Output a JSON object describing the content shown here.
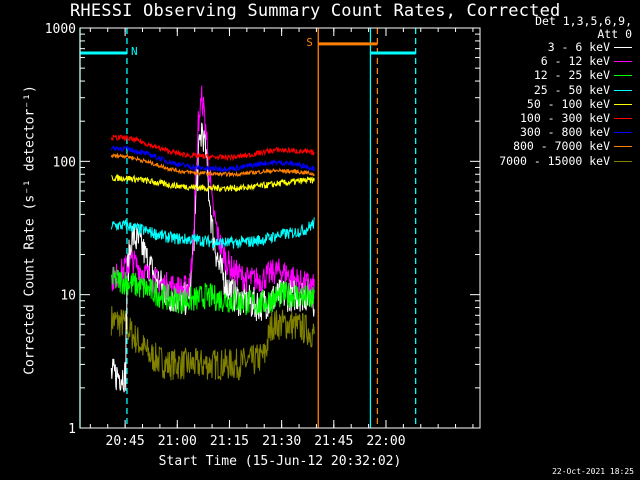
{
  "chart_data": {
    "type": "line",
    "title": "RHESSI Observing Summary Count Rates, Corrected",
    "detector_line1": "Det 1,3,5,6,9,",
    "detector_line2": "Att 0",
    "xlabel": "Start Time (15-Jun-12 20:32:02)",
    "ylabel": "Corrected Count Rate (s⁻¹ detector⁻¹)",
    "x_unit": "minutes after 20:32:02 UT",
    "xlim": [
      0,
      115
    ],
    "ylim": [
      1,
      1000
    ],
    "y_scale": "log",
    "x_ticks": [
      {
        "value": 12.97,
        "label": "20:45"
      },
      {
        "value": 27.97,
        "label": "21:00"
      },
      {
        "value": 42.97,
        "label": "21:15"
      },
      {
        "value": 57.97,
        "label": "21:30"
      },
      {
        "value": 72.97,
        "label": "21:45"
      },
      {
        "value": 87.97,
        "label": "22:00"
      }
    ],
    "y_ticks": [
      {
        "value": 1,
        "label": "1"
      },
      {
        "value": 10,
        "label": "10"
      },
      {
        "value": 100,
        "label": "100"
      },
      {
        "value": 1000,
        "label": "1000"
      }
    ],
    "timestamp": "22-Oct-2021 18:25",
    "flags": [
      {
        "label": "N",
        "color": "#00ffff",
        "x_start": 0,
        "x_end": 13.5,
        "level": 650
      },
      {
        "label": "S",
        "color": "#ff8000",
        "x_start": 68.5,
        "x_end": 85.5,
        "level": 760
      },
      {
        "label": "",
        "color": "#00ffff",
        "x_start": 83.5,
        "x_end": 96.5,
        "level": 650
      }
    ],
    "vlines": [
      {
        "x": 0,
        "color": "#00ffff",
        "style": "solid"
      },
      {
        "x": 13.5,
        "color": "#00ffff",
        "style": "dashed"
      },
      {
        "x": 68.5,
        "color": "#ff8000",
        "style": "solid"
      },
      {
        "x": 83.5,
        "color": "#00ffff",
        "style": "solid"
      },
      {
        "x": 85.5,
        "color": "#ff8000",
        "style": "dashed"
      },
      {
        "x": 96.5,
        "color": "#00ffff",
        "style": "dashed"
      }
    ],
    "series": [
      {
        "name": "3 - 6 keV",
        "color": "#ffffff",
        "x": [
          9,
          13,
          13.5,
          15,
          18,
          20,
          23,
          25,
          27,
          29,
          31,
          32,
          33,
          34,
          35,
          36,
          37,
          38,
          40,
          42,
          44,
          46,
          48,
          50,
          52,
          54,
          56,
          58,
          60,
          62,
          64,
          66,
          67.5
        ],
        "y": [
          2.5,
          2.5,
          15,
          28,
          22,
          16,
          12,
          10,
          9.5,
          9,
          9.5,
          14,
          40,
          110,
          180,
          120,
          60,
          30,
          16,
          12,
          10,
          9,
          9,
          8.5,
          8.5,
          9,
          9.5,
          10,
          10,
          10,
          10,
          10,
          9
        ]
      },
      {
        "name": "6 - 12 keV",
        "color": "#ff00ff",
        "x": [
          9,
          12,
          15,
          18,
          21,
          24,
          27,
          29,
          31,
          32,
          33,
          34,
          35,
          36,
          37,
          38,
          40,
          42,
          44,
          46,
          48,
          50,
          52,
          54,
          56,
          58,
          60,
          62,
          64,
          66,
          67.5
        ],
        "y": [
          13,
          15,
          18,
          15,
          13,
          12,
          11.5,
          11,
          11.5,
          16,
          50,
          200,
          300,
          190,
          90,
          45,
          25,
          18,
          15,
          14,
          13,
          13,
          13,
          14,
          15,
          15,
          14,
          13,
          12,
          12,
          11
        ]
      },
      {
        "name": "12 - 25 keV",
        "color": "#00ff00",
        "x": [
          9,
          13,
          17,
          21,
          25,
          29,
          33,
          36,
          40,
          44,
          48,
          52,
          56,
          58,
          62,
          67.5
        ],
        "y": [
          13,
          12.5,
          11.5,
          10.5,
          9.5,
          9,
          9.2,
          9.8,
          9.3,
          9,
          8.7,
          8.5,
          9.5,
          10,
          10,
          9
        ]
      },
      {
        "name": "25 - 50 keV",
        "color": "#00ffff",
        "x": [
          9,
          13,
          17,
          21,
          25,
          29,
          33,
          37,
          41,
          45,
          49,
          53,
          57,
          61,
          65,
          67.5
        ],
        "y": [
          33,
          33,
          31,
          29,
          27,
          26,
          26,
          25,
          24.5,
          24.5,
          25,
          26,
          28,
          29,
          31,
          35
        ]
      },
      {
        "name": "50 - 100 keV",
        "color": "#ffff00",
        "x": [
          9,
          13,
          17,
          21,
          25,
          29,
          33,
          37,
          41,
          45,
          49,
          53,
          57,
          61,
          65,
          67.5
        ],
        "y": [
          75,
          75,
          73,
          70,
          67,
          65,
          64,
          63,
          63,
          63,
          64,
          66,
          68,
          70,
          72,
          72
        ]
      },
      {
        "name": "100 - 300 keV",
        "color": "#ff0000",
        "x": [
          9,
          13,
          17,
          21,
          25,
          29,
          33,
          37,
          41,
          45,
          49,
          53,
          57,
          61,
          65,
          67.5
        ],
        "y": [
          150,
          150,
          142,
          130,
          120,
          113,
          110,
          108,
          107,
          108,
          112,
          118,
          122,
          120,
          118,
          115
        ]
      },
      {
        "name": "300 - 800 keV",
        "color": "#0000ff",
        "x": [
          9,
          13,
          17,
          21,
          25,
          29,
          33,
          37,
          41,
          45,
          49,
          53,
          57,
          61,
          65,
          67.5
        ],
        "y": [
          125,
          125,
          118,
          110,
          100,
          94,
          90,
          88,
          88,
          89,
          93,
          97,
          98,
          96,
          92,
          88
        ]
      },
      {
        "name": "800 - 7000 keV",
        "color": "#ff8000",
        "x": [
          9,
          13,
          17,
          21,
          25,
          29,
          33,
          37,
          41,
          45,
          49,
          53,
          57,
          61,
          65,
          67.5
        ],
        "y": [
          110,
          110,
          103,
          96,
          89,
          84,
          82,
          81,
          80,
          80,
          82,
          84,
          85,
          84,
          82,
          80
        ]
      },
      {
        "name": "7000 - 15000 keV",
        "color": "#808000",
        "x": [
          9,
          13,
          15,
          20,
          25,
          30,
          35,
          40,
          45,
          50,
          53,
          55,
          60,
          65,
          67.5
        ],
        "y": [
          6.5,
          6,
          5,
          3.5,
          3,
          3,
          3,
          3,
          3,
          3.2,
          3.5,
          6,
          6,
          5.5,
          5
        ]
      }
    ]
  }
}
